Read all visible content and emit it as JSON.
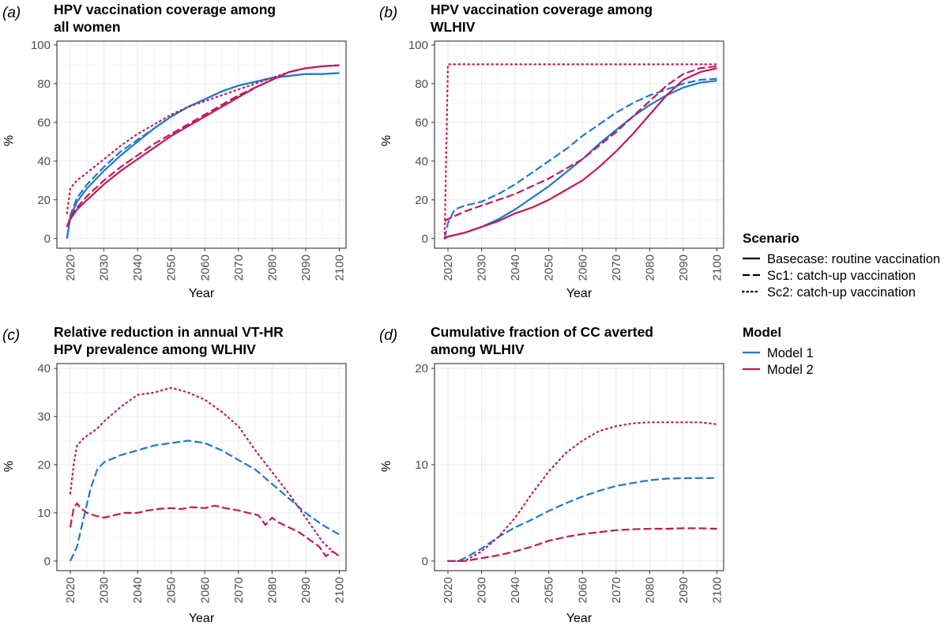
{
  "colors": {
    "Model 1": "#1f78d1",
    "Model 2": "#c2185b",
    "grid_major": "#ebebeb",
    "grid_minor": "#f5f5f5",
    "panel_border": "#333333"
  },
  "legend": {
    "scenario_title": "Scenario",
    "scenario_items": [
      {
        "label": "Basecase: routine vaccination",
        "dash": "solid"
      },
      {
        "label": "Sc1: catch-up vaccination",
        "dash": "long"
      },
      {
        "label": "Sc2: catch-up vaccination",
        "dash": "dotted"
      }
    ],
    "model_title": "Model",
    "model_items": [
      {
        "label": "Model 1",
        "color_key": "Model 1"
      },
      {
        "label": "Model 2",
        "color_key": "Model 2"
      }
    ]
  },
  "chart_data": [
    {
      "id": "a",
      "letter": "(a)",
      "type": "line",
      "title": [
        "HPV vaccination coverage among",
        "all women"
      ],
      "xlabel": "Year",
      "ylabel": "%",
      "xlim": [
        2016,
        2102
      ],
      "ylim": [
        -5,
        102
      ],
      "xticks": [
        2020,
        2030,
        2040,
        2050,
        2060,
        2070,
        2080,
        2090,
        2100
      ],
      "yticks": [
        0,
        20,
        40,
        60,
        80,
        100
      ],
      "series": [
        {
          "model": "Model 1",
          "scenario": "Basecase",
          "x": [
            2019,
            2020,
            2022,
            2025,
            2030,
            2035,
            2040,
            2045,
            2050,
            2055,
            2060,
            2065,
            2070,
            2075,
            2080,
            2085,
            2090,
            2095,
            2100
          ],
          "y": [
            0,
            11,
            19,
            26,
            35,
            43,
            50,
            57,
            63,
            68,
            72,
            76,
            79,
            81,
            83,
            84,
            85,
            85,
            85.5
          ]
        },
        {
          "model": "Model 1",
          "scenario": "Sc1",
          "x": [
            2019,
            2020,
            2022,
            2025,
            2030,
            2035,
            2040,
            2045,
            2050,
            2055,
            2060,
            2065,
            2070,
            2075,
            2080,
            2085,
            2090,
            2095,
            2100
          ],
          "y": [
            0,
            12,
            21,
            28,
            37,
            45,
            51,
            57,
            63,
            68,
            72,
            76,
            79,
            81,
            83,
            84,
            85,
            85,
            85.5
          ]
        },
        {
          "model": "Model 2",
          "scenario": "Basecase",
          "x": [
            2019,
            2020,
            2022,
            2025,
            2030,
            2035,
            2040,
            2045,
            2050,
            2055,
            2060,
            2065,
            2070,
            2075,
            2080,
            2085,
            2090,
            2095,
            2100
          ],
          "y": [
            6,
            10,
            15,
            20,
            28,
            35,
            41,
            47,
            53,
            58,
            63,
            68,
            73,
            78,
            82,
            86,
            88,
            89,
            89.5
          ]
        },
        {
          "model": "Model 2",
          "scenario": "Sc1",
          "x": [
            2019,
            2020,
            2022,
            2025,
            2030,
            2035,
            2040,
            2045,
            2050,
            2055,
            2060,
            2065,
            2070,
            2075,
            2080,
            2085,
            2090,
            2095,
            2100
          ],
          "y": [
            6,
            11,
            16,
            22,
            30,
            37,
            43,
            49,
            54,
            59,
            64,
            69,
            74,
            78,
            82,
            86,
            88,
            89,
            89.5
          ]
        },
        {
          "model": "Model 2",
          "scenario": "Sc2",
          "x": [
            2019,
            2020,
            2022,
            2025,
            2030,
            2035,
            2040,
            2045,
            2050,
            2055,
            2060,
            2065,
            2070,
            2075,
            2080,
            2085,
            2090,
            2095,
            2100
          ],
          "y": [
            13,
            26,
            30,
            34,
            41,
            48,
            54,
            59,
            64,
            68,
            71,
            74,
            77,
            80,
            83,
            86,
            88,
            89,
            89.5
          ]
        }
      ]
    },
    {
      "id": "b",
      "letter": "(b)",
      "type": "line",
      "title": [
        "HPV vaccination coverage among",
        "WLHIV"
      ],
      "xlabel": "Year",
      "ylabel": "%",
      "xlim": [
        2016,
        2102
      ],
      "ylim": [
        -5,
        102
      ],
      "xticks": [
        2020,
        2030,
        2040,
        2050,
        2060,
        2070,
        2080,
        2090,
        2100
      ],
      "yticks": [
        0,
        20,
        40,
        60,
        80,
        100
      ],
      "series": [
        {
          "model": "Model 1",
          "scenario": "Basecase",
          "x": [
            2019,
            2020,
            2025,
            2030,
            2035,
            2040,
            2045,
            2050,
            2055,
            2060,
            2065,
            2070,
            2075,
            2080,
            2085,
            2090,
            2095,
            2100
          ],
          "y": [
            0,
            1,
            3,
            6,
            10,
            15,
            21,
            27,
            34,
            41,
            49,
            56,
            63,
            69,
            74,
            78,
            80.5,
            81.5
          ]
        },
        {
          "model": "Model 1",
          "scenario": "Sc1",
          "x": [
            2019,
            2020,
            2022,
            2025,
            2030,
            2035,
            2040,
            2045,
            2050,
            2055,
            2060,
            2065,
            2070,
            2075,
            2080,
            2085,
            2090,
            2095,
            2100
          ],
          "y": [
            0,
            8,
            15,
            17,
            19,
            23,
            28,
            34,
            40,
            46,
            53,
            59,
            65,
            70,
            74,
            77,
            80,
            82,
            82.5
          ]
        },
        {
          "model": "Model 2",
          "scenario": "Basecase",
          "x": [
            2019,
            2020,
            2025,
            2030,
            2035,
            2040,
            2045,
            2050,
            2055,
            2060,
            2065,
            2070,
            2075,
            2080,
            2085,
            2090,
            2095,
            2100
          ],
          "y": [
            0,
            1,
            3,
            6,
            9,
            13,
            16,
            20,
            25,
            30,
            37,
            45,
            54,
            64,
            74,
            82,
            86,
            88
          ]
        },
        {
          "model": "Model 2",
          "scenario": "Sc1",
          "x": [
            2019,
            2020,
            2025,
            2030,
            2035,
            2040,
            2045,
            2050,
            2055,
            2060,
            2065,
            2070,
            2075,
            2080,
            2085,
            2090,
            2095,
            2100
          ],
          "y": [
            9,
            10,
            14,
            17,
            20,
            23,
            27,
            31,
            36,
            41,
            48,
            55,
            63,
            71,
            79,
            85,
            88,
            89
          ]
        },
        {
          "model": "Model 2",
          "scenario": "Sc2",
          "x": [
            2019,
            2020,
            2025,
            2030,
            2040,
            2050,
            2060,
            2070,
            2080,
            2090,
            2100
          ],
          "y": [
            0,
            90,
            90,
            90,
            90,
            90,
            90,
            90,
            90,
            90,
            90
          ]
        }
      ]
    },
    {
      "id": "c",
      "letter": "(c)",
      "type": "line",
      "title": [
        "Relative reduction in annual VT-HR",
        "HPV prevalence among WLHIV"
      ],
      "xlabel": "Year",
      "ylabel": "%",
      "xlim": [
        2016,
        2102
      ],
      "ylim": [
        -2,
        41
      ],
      "xticks": [
        2020,
        2030,
        2040,
        2050,
        2060,
        2070,
        2080,
        2090,
        2100
      ],
      "yticks": [
        0,
        10,
        20,
        30,
        40
      ],
      "series": [
        {
          "model": "Model 1",
          "scenario": "Sc1",
          "x": [
            2020,
            2022,
            2024,
            2026,
            2028,
            2030,
            2035,
            2040,
            2045,
            2050,
            2055,
            2060,
            2065,
            2070,
            2075,
            2080,
            2085,
            2090,
            2095,
            2100
          ],
          "y": [
            0,
            3,
            9,
            15,
            19,
            20.5,
            22,
            23,
            24,
            24.5,
            25,
            24.5,
            23,
            21,
            19,
            16,
            13,
            10,
            7.5,
            5.5
          ]
        },
        {
          "model": "Model 2",
          "scenario": "Sc1",
          "x": [
            2020,
            2021,
            2022,
            2023,
            2025,
            2027,
            2030,
            2033,
            2036,
            2040,
            2043,
            2046,
            2050,
            2053,
            2056,
            2060,
            2063,
            2066,
            2070,
            2073,
            2076,
            2078,
            2080,
            2082,
            2085,
            2088,
            2090,
            2092,
            2094,
            2096,
            2098,
            2100
          ],
          "y": [
            7,
            11,
            12,
            11,
            10,
            9.5,
            9,
            9.5,
            10,
            10,
            10.5,
            10.8,
            11,
            10.8,
            11.2,
            11,
            11.5,
            11,
            10.5,
            10,
            9.5,
            7.5,
            9,
            8,
            7,
            6,
            5,
            4,
            3,
            1,
            2,
            1
          ]
        },
        {
          "model": "Model 2",
          "scenario": "Sc2",
          "x": [
            2020,
            2021,
            2022,
            2024,
            2026,
            2028,
            2030,
            2035,
            2040,
            2045,
            2050,
            2055,
            2060,
            2065,
            2070,
            2075,
            2080,
            2085,
            2090,
            2095,
            2098,
            2100
          ],
          "y": [
            14,
            20,
            24,
            25.5,
            26.5,
            27.5,
            29,
            32,
            34.5,
            35,
            36,
            35,
            33.5,
            31,
            28,
            23,
            18.5,
            14,
            9,
            4,
            2,
            1
          ]
        }
      ]
    },
    {
      "id": "d",
      "letter": "(d)",
      "type": "line",
      "title": [
        "Cumulative fraction of CC averted",
        "among WLHIV"
      ],
      "xlabel": "Year",
      "ylabel": "%",
      "xlim": [
        2016,
        2102
      ],
      "ylim": [
        -1,
        20.5
      ],
      "xticks": [
        2020,
        2030,
        2040,
        2050,
        2060,
        2070,
        2080,
        2090,
        2100
      ],
      "yticks": [
        0,
        10,
        20
      ],
      "series": [
        {
          "model": "Model 1",
          "scenario": "Sc1",
          "x": [
            2020,
            2023,
            2025,
            2030,
            2035,
            2040,
            2045,
            2050,
            2055,
            2060,
            2065,
            2070,
            2075,
            2080,
            2085,
            2090,
            2095,
            2100
          ],
          "y": [
            0,
            0,
            0.3,
            1.3,
            2.5,
            3.5,
            4.3,
            5.2,
            6,
            6.7,
            7.3,
            7.8,
            8.1,
            8.4,
            8.55,
            8.6,
            8.62,
            8.62
          ]
        },
        {
          "model": "Model 2",
          "scenario": "Sc1",
          "x": [
            2020,
            2025,
            2030,
            2035,
            2040,
            2045,
            2050,
            2055,
            2060,
            2065,
            2070,
            2075,
            2080,
            2085,
            2090,
            2095,
            2100
          ],
          "y": [
            0,
            0,
            0.3,
            0.6,
            1.0,
            1.5,
            2.1,
            2.5,
            2.8,
            3.0,
            3.2,
            3.3,
            3.35,
            3.35,
            3.4,
            3.4,
            3.35
          ]
        },
        {
          "model": "Model 2",
          "scenario": "Sc2",
          "x": [
            2020,
            2025,
            2030,
            2035,
            2040,
            2045,
            2050,
            2055,
            2060,
            2065,
            2070,
            2075,
            2080,
            2085,
            2090,
            2095,
            2100
          ],
          "y": [
            0,
            0,
            1.0,
            2.5,
            4.5,
            7.0,
            9.3,
            11.2,
            12.5,
            13.5,
            14.0,
            14.3,
            14.4,
            14.4,
            14.4,
            14.4,
            14.2
          ]
        }
      ]
    }
  ]
}
